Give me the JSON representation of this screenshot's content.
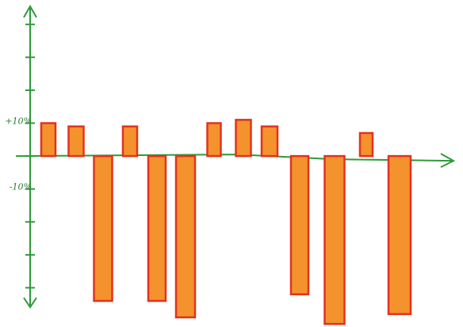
{
  "chart_data": {
    "type": "bar",
    "values": [
      10,
      9,
      -44,
      9,
      -44,
      -49,
      10,
      11,
      9,
      -42,
      -51,
      7,
      -48
    ],
    "color": "#f4922e",
    "edge_color": "#e2321f",
    "axis_color": "#2e9a3a",
    "ylim": [
      -50,
      45
    ],
    "yticks": [
      {
        "value": 10,
        "label": "+10%"
      },
      {
        "value": -10,
        "label": "-10%"
      }
    ],
    "minor_yticks": [
      40,
      30,
      20,
      0,
      -20,
      -30,
      -40
    ]
  }
}
